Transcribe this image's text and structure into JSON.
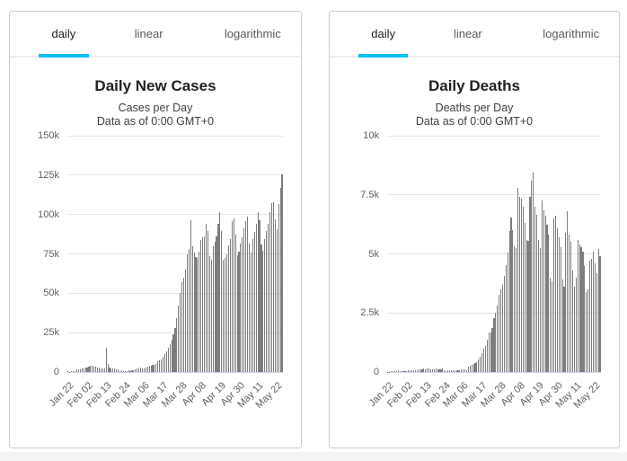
{
  "colors": {
    "accent": "#00c0ee",
    "bar": "#7d7d7d",
    "gridline": "#e6e6e6",
    "axis_line": "#ccd6eb",
    "panel_border": "#cccccc",
    "footer_strip": "#f3f4f6"
  },
  "tabs": {
    "labels": [
      "daily",
      "linear",
      "logarithmic"
    ],
    "active": "daily"
  },
  "chart_data": [
    {
      "type": "bar",
      "title": "Daily New Cases",
      "subtitle": "Cases per Day",
      "note": "Data as of 0:00 GMT+0",
      "xlabel": "",
      "ylabel": "",
      "ylim": [
        0,
        150000
      ],
      "y_tick_labels": [
        "0",
        "25k",
        "50k",
        "75k",
        "100k",
        "125k",
        "150k"
      ],
      "x_tick_labels": [
        "Jan 22",
        "Feb 02",
        "Feb 13",
        "Feb 24",
        "Mar 06",
        "Mar 17",
        "Mar 28",
        "Apr 08",
        "Apr 19",
        "Apr 30",
        "May 11",
        "May 22"
      ],
      "x_tick_indices": [
        0,
        11,
        22,
        33,
        44,
        55,
        66,
        77,
        88,
        99,
        110,
        121
      ],
      "grid": true,
      "legend": "none",
      "values": [
        450,
        270,
        470,
        700,
        790,
        1780,
        1480,
        1760,
        2010,
        2130,
        2600,
        2840,
        3240,
        3930,
        3730,
        3170,
        3440,
        2680,
        3000,
        2550,
        2070,
        2100,
        15130,
        5090,
        2640,
        2160,
        2010,
        2140,
        1870,
        1750,
        650,
        890,
        520,
        410,
        570,
        900,
        580,
        1390,
        1050,
        1690,
        2090,
        2350,
        2660,
        2570,
        2430,
        2720,
        3530,
        3910,
        4150,
        4300,
        4700,
        5400,
        6900,
        7500,
        8100,
        9900,
        11700,
        13100,
        15300,
        17500,
        20500,
        24000,
        28000,
        34000,
        42000,
        50000,
        57000,
        60000,
        65000,
        75000,
        78000,
        96300,
        80000,
        76000,
        73000,
        72500,
        76500,
        84000,
        85500,
        86000,
        94300,
        89700,
        73300,
        71500,
        80000,
        82700,
        85900,
        94100,
        101500,
        89400,
        71400,
        72400,
        74700,
        80200,
        84200,
        95800,
        97300,
        87200,
        74200,
        76700,
        81500,
        85400,
        91500,
        96100,
        98500,
        81600,
        76000,
        84200,
        88900,
        94100,
        101400,
        96500,
        81100,
        76900,
        84500,
        89300,
        94300,
        101600,
        107500,
        108000,
        97000,
        90500,
        106500,
        117100,
        125300
      ]
    },
    {
      "type": "bar",
      "title": "Daily Deaths",
      "subtitle": "Deaths per Day",
      "note": "Data as of 0:00 GMT+0",
      "xlabel": "",
      "ylabel": "",
      "ylim": [
        0,
        10000
      ],
      "y_tick_labels": [
        "0",
        "2.5k",
        "5k",
        "7.5k",
        "10k"
      ],
      "x_tick_labels": [
        "Jan 22",
        "Feb 02",
        "Feb 13",
        "Feb 24",
        "Mar 06",
        "Mar 17",
        "Mar 28",
        "Apr 08",
        "Apr 19",
        "Apr 30",
        "May 11",
        "May 22"
      ],
      "x_tick_indices": [
        0,
        11,
        22,
        33,
        44,
        55,
        66,
        77,
        88,
        99,
        110,
        121
      ],
      "grid": true,
      "legend": "none",
      "values": [
        17,
        18,
        26,
        26,
        56,
        49,
        66,
        38,
        43,
        46,
        45,
        57,
        64,
        66,
        73,
        73,
        86,
        89,
        97,
        108,
        97,
        146,
        121,
        143,
        142,
        105,
        106,
        98,
        136,
        114,
        118,
        109,
        150,
        71,
        52,
        67,
        65,
        59,
        69,
        58,
        68,
        80,
        86,
        99,
        106,
        101,
        95,
        227,
        271,
        290,
        343,
        368,
        437,
        537,
        657,
        793,
        981,
        1086,
        1372,
        1662,
        1675,
        1855,
        2277,
        2527,
        2823,
        3269,
        3510,
        3706,
        4064,
        4525,
        5057,
        5964,
        6540,
        6012,
        5340,
        5250,
        7800,
        7400,
        7350,
        7000,
        6300,
        5600,
        5550,
        7400,
        8100,
        8450,
        7000,
        6650,
        5600,
        5250,
        7250,
        6850,
        6600,
        6230,
        5800,
        4000,
        3850,
        6500,
        6600,
        6100,
        5700,
        5300,
        3900,
        3600,
        5900,
        6800,
        5800,
        5500,
        4300,
        3600,
        4000,
        5600,
        5400,
        5300,
        5100,
        4500,
        3400,
        3500,
        4700,
        4800,
        5100,
        4600,
        4200,
        5200,
        4900
      ]
    }
  ]
}
